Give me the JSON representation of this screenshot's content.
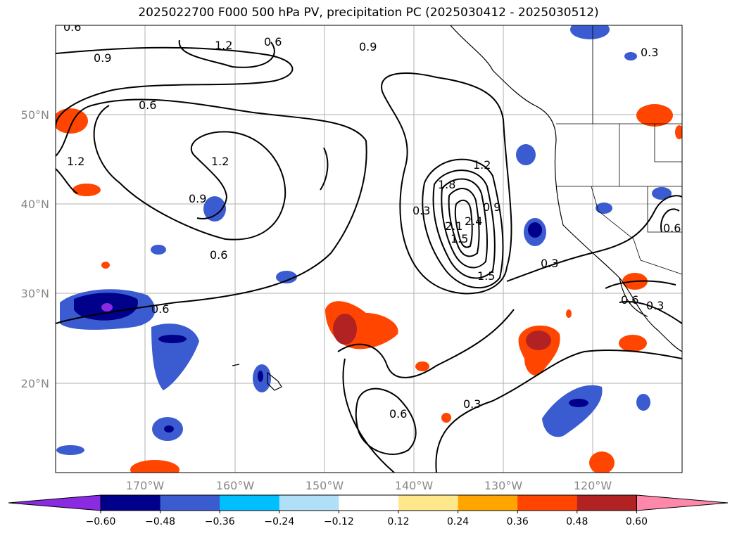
{
  "title": "2025022700 F000 500 hPa PV, precipitation PC (2025030412 - 2025030512)",
  "lon_ticks": [
    "170°W",
    "160°W",
    "150°W",
    "140°W",
    "130°W",
    "120°W"
  ],
  "lat_ticks": [
    "50°N",
    "40°N",
    "30°N",
    "20°N"
  ],
  "colorbar": {
    "ticks": [
      "−0.60",
      "−0.48",
      "−0.36",
      "−0.24",
      "−0.12",
      "0.12",
      "0.24",
      "0.36",
      "0.48",
      "0.60"
    ],
    "colors": [
      "#8a2be2",
      "#00008b",
      "#3b5bd0",
      "#00bfff",
      "#b0e0f8",
      "#ffffff",
      "#ffe88c",
      "#ffa500",
      "#ff4500",
      "#b22222",
      "#ff88aa"
    ]
  },
  "contour_labels": [
    "0.6",
    "0.9",
    "1.2",
    "0.6",
    "0.9",
    "0.3",
    "0.6",
    "1.2",
    "1.2",
    "0.9",
    "0.6",
    "0.6",
    "0.3",
    "1.8",
    "2.1",
    "2.4",
    "1.5",
    "1.5",
    "0.9",
    "1.2",
    "0.3",
    "0.6",
    "0.6",
    "0.3",
    "0.6",
    "0.3"
  ]
}
